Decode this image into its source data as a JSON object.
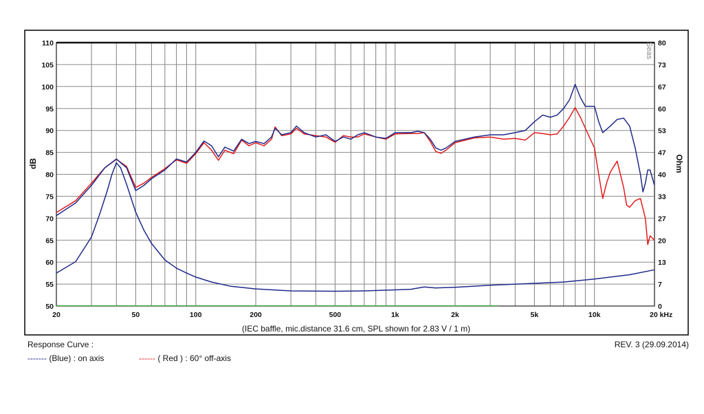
{
  "chart_data": {
    "type": "line",
    "x_scale": "log",
    "xlim": [
      20,
      20000
    ],
    "ylim_left": [
      50,
      110
    ],
    "ylim_right": [
      0,
      80
    ],
    "ylabel_left": "dB",
    "ylabel_right": "Ohm",
    "caption": "(IEC baffle, mic.distance 31.6 cm, SPL shown for 2.83 V / 1 m)",
    "x_ticks": [
      {
        "value": 20,
        "label": "20"
      },
      {
        "value": 50,
        "label": "50"
      },
      {
        "value": 100,
        "label": "100"
      },
      {
        "value": 200,
        "label": "200"
      },
      {
        "value": 500,
        "label": "500"
      },
      {
        "value": 1000,
        "label": "1k"
      },
      {
        "value": 2000,
        "label": "2k"
      },
      {
        "value": 5000,
        "label": "5k"
      },
      {
        "value": 10000,
        "label": "10k"
      },
      {
        "value": 20000,
        "label": "20 kHz"
      }
    ],
    "y_ticks_left": [
      110,
      105,
      100,
      95,
      90,
      85,
      80,
      75,
      70,
      65,
      60,
      55,
      50
    ],
    "y_ticks_right": [
      80,
      73,
      67,
      60,
      53,
      47,
      40,
      33,
      27,
      20,
      13,
      7,
      0
    ],
    "watermark": "Seas",
    "grid": true,
    "series": [
      {
        "name": "on axis",
        "axis": "left",
        "color": "#1f2a8a",
        "points": [
          [
            20,
            70.6
          ],
          [
            25,
            73.5
          ],
          [
            30,
            77.5
          ],
          [
            35,
            81.5
          ],
          [
            40,
            83.5
          ],
          [
            45,
            81.5
          ],
          [
            50,
            76.3
          ],
          [
            55,
            77.5
          ],
          [
            60,
            79
          ],
          [
            70,
            81
          ],
          [
            80,
            83.5
          ],
          [
            90,
            82.8
          ],
          [
            100,
            85
          ],
          [
            110,
            87.6
          ],
          [
            120,
            86.5
          ],
          [
            130,
            84
          ],
          [
            140,
            86.2
          ],
          [
            155,
            85.3
          ],
          [
            170,
            88
          ],
          [
            185,
            87
          ],
          [
            200,
            87.5
          ],
          [
            220,
            87
          ],
          [
            240,
            88.5
          ],
          [
            250,
            90.5
          ],
          [
            270,
            89
          ],
          [
            300,
            89.5
          ],
          [
            320,
            91
          ],
          [
            350,
            89.5
          ],
          [
            400,
            88.5
          ],
          [
            450,
            89
          ],
          [
            500,
            87.5
          ],
          [
            550,
            88.5
          ],
          [
            600,
            88
          ],
          [
            650,
            89
          ],
          [
            700,
            89.5
          ],
          [
            800,
            88.5
          ],
          [
            900,
            88.2
          ],
          [
            1000,
            89.5
          ],
          [
            1200,
            89.5
          ],
          [
            1300,
            89.8
          ],
          [
            1400,
            89.5
          ],
          [
            1500,
            88
          ],
          [
            1600,
            86
          ],
          [
            1700,
            85.5
          ],
          [
            1800,
            86
          ],
          [
            2000,
            87.5
          ],
          [
            2500,
            88.5
          ],
          [
            3000,
            89
          ],
          [
            3500,
            89
          ],
          [
            4000,
            89.5
          ],
          [
            4500,
            90
          ],
          [
            5000,
            92
          ],
          [
            5500,
            93.5
          ],
          [
            6000,
            93
          ],
          [
            6500,
            93.5
          ],
          [
            7000,
            95
          ],
          [
            7500,
            97
          ],
          [
            8000,
            100.5
          ],
          [
            8500,
            97.5
          ],
          [
            9000,
            95.5
          ],
          [
            10000,
            95.5
          ],
          [
            10500,
            92
          ],
          [
            11000,
            89.5
          ],
          [
            12000,
            91
          ],
          [
            13000,
            92.5
          ],
          [
            14000,
            92.8
          ],
          [
            15000,
            91
          ],
          [
            16000,
            86
          ],
          [
            17000,
            80
          ],
          [
            17500,
            76
          ],
          [
            18000,
            78
          ],
          [
            18500,
            81
          ],
          [
            19000,
            81
          ],
          [
            20000,
            77.5
          ]
        ]
      },
      {
        "name": "60° off-axis",
        "axis": "left",
        "color": "#e21b1b",
        "points": [
          [
            20,
            71.3
          ],
          [
            25,
            74
          ],
          [
            30,
            78
          ],
          [
            35,
            81.5
          ],
          [
            40,
            83.4
          ],
          [
            45,
            81.8
          ],
          [
            50,
            77
          ],
          [
            55,
            78
          ],
          [
            60,
            79.3
          ],
          [
            70,
            81.3
          ],
          [
            80,
            83.3
          ],
          [
            90,
            82.5
          ],
          [
            100,
            84.7
          ],
          [
            110,
            87.2
          ],
          [
            120,
            85.5
          ],
          [
            130,
            83.2
          ],
          [
            140,
            85.5
          ],
          [
            155,
            84.7
          ],
          [
            170,
            87.8
          ],
          [
            185,
            86.5
          ],
          [
            200,
            87.2
          ],
          [
            220,
            86.5
          ],
          [
            240,
            88
          ],
          [
            250,
            90.8
          ],
          [
            270,
            88.8
          ],
          [
            300,
            89.2
          ],
          [
            320,
            90.5
          ],
          [
            350,
            89.2
          ],
          [
            400,
            88.8
          ],
          [
            450,
            88.5
          ],
          [
            500,
            87.3
          ],
          [
            550,
            88.8
          ],
          [
            600,
            88.5
          ],
          [
            650,
            88.5
          ],
          [
            700,
            89.2
          ],
          [
            800,
            88.5
          ],
          [
            900,
            88
          ],
          [
            1000,
            89.2
          ],
          [
            1200,
            89.3
          ],
          [
            1300,
            89.3
          ],
          [
            1400,
            89.5
          ],
          [
            1500,
            87.5
          ],
          [
            1600,
            85.2
          ],
          [
            1700,
            84.8
          ],
          [
            1800,
            85.5
          ],
          [
            2000,
            87.2
          ],
          [
            2500,
            88.3
          ],
          [
            3000,
            88.5
          ],
          [
            3500,
            88
          ],
          [
            4000,
            88.2
          ],
          [
            4500,
            87.8
          ],
          [
            5000,
            89.5
          ],
          [
            5500,
            89.3
          ],
          [
            6000,
            89
          ],
          [
            6500,
            89.2
          ],
          [
            7000,
            91
          ],
          [
            7500,
            93
          ],
          [
            8000,
            95.2
          ],
          [
            8500,
            93
          ],
          [
            9000,
            90.5
          ],
          [
            10000,
            86
          ],
          [
            10500,
            80
          ],
          [
            11000,
            74.5
          ],
          [
            11500,
            78
          ],
          [
            12000,
            80.5
          ],
          [
            13000,
            83
          ],
          [
            14000,
            77
          ],
          [
            14500,
            73
          ],
          [
            15000,
            72.5
          ],
          [
            16000,
            74
          ],
          [
            17000,
            74.5
          ],
          [
            18000,
            70
          ],
          [
            18500,
            64
          ],
          [
            19000,
            66
          ],
          [
            20000,
            65
          ]
        ]
      },
      {
        "name": "impedance",
        "axis": "right",
        "color": "#1f2a8a",
        "points": [
          [
            20,
            10
          ],
          [
            25,
            13.5
          ],
          [
            30,
            21
          ],
          [
            33,
            28
          ],
          [
            36,
            35
          ],
          [
            38,
            40
          ],
          [
            40,
            43.5
          ],
          [
            42,
            42
          ],
          [
            45,
            37
          ],
          [
            50,
            28.5
          ],
          [
            55,
            23
          ],
          [
            60,
            19
          ],
          [
            70,
            14
          ],
          [
            80,
            11.5
          ],
          [
            90,
            10
          ],
          [
            100,
            8.8
          ],
          [
            120,
            7.3
          ],
          [
            150,
            6
          ],
          [
            200,
            5.2
          ],
          [
            300,
            4.6
          ],
          [
            500,
            4.5
          ],
          [
            700,
            4.6
          ],
          [
            1000,
            4.9
          ],
          [
            1200,
            5.1
          ],
          [
            1400,
            5.8
          ],
          [
            1600,
            5.5
          ],
          [
            2000,
            5.7
          ],
          [
            3000,
            6.3
          ],
          [
            5000,
            6.9
          ],
          [
            7000,
            7.3
          ],
          [
            10000,
            8.2
          ],
          [
            15000,
            9.5
          ],
          [
            20000,
            11
          ]
        ]
      }
    ]
  },
  "footer": {
    "title": "Response Curve :",
    "revision": "REV. 3 (29.09.2014)",
    "legend": [
      {
        "line": "-------",
        "text": "(Blue)  : on axis",
        "color": "#1f2a8a"
      },
      {
        "line": "------",
        "text": "( Red ) : 60° off-axis",
        "color": "#e21b1b"
      }
    ]
  }
}
